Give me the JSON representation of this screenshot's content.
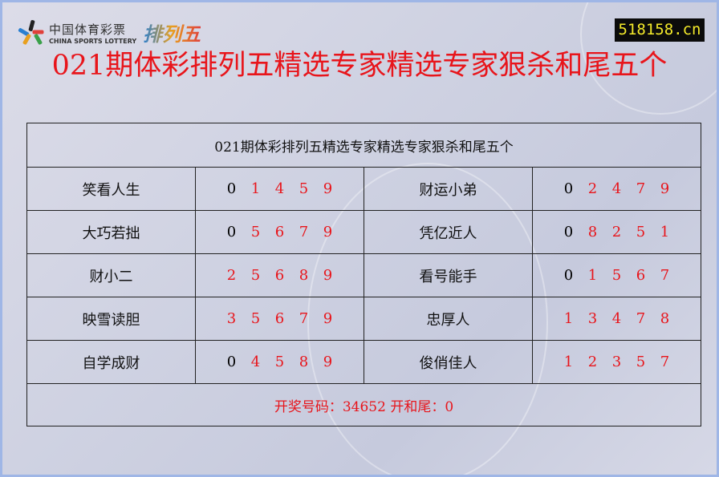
{
  "logo": {
    "cn": "中国体育彩票",
    "en": "CHINA SPORTS LOTTERY",
    "product": "排列五"
  },
  "site": "518158.cn",
  "title": "021期体彩排列五精选专家精选专家狠杀和尾五个",
  "table": {
    "header": "021期体彩排列五精选专家精选专家狠杀和尾五个",
    "rows": [
      {
        "left": {
          "name": "笑看人生",
          "nums": [
            "0",
            "1",
            "4",
            "5",
            "9"
          ]
        },
        "right": {
          "name": "财运小弟",
          "nums": [
            "0",
            "2",
            "4",
            "7",
            "9"
          ]
        }
      },
      {
        "left": {
          "name": "大巧若拙",
          "nums": [
            "0",
            "5",
            "6",
            "7",
            "9"
          ]
        },
        "right": {
          "name": "凭亿近人",
          "nums": [
            "0",
            "8",
            "2",
            "5",
            "1"
          ]
        }
      },
      {
        "left": {
          "name": "财小二",
          "nums": [
            "2",
            "5",
            "6",
            "8",
            "9"
          ]
        },
        "right": {
          "name": "看号能手",
          "nums": [
            "0",
            "1",
            "5",
            "6",
            "7"
          ]
        }
      },
      {
        "left": {
          "name": "映雪读胆",
          "nums": [
            "3",
            "5",
            "6",
            "7",
            "9"
          ]
        },
        "right": {
          "name": "忠厚人",
          "nums": [
            "1",
            "3",
            "4",
            "7",
            "8"
          ]
        }
      },
      {
        "left": {
          "name": "自学成财",
          "nums": [
            "0",
            "4",
            "5",
            "8",
            "9"
          ]
        },
        "right": {
          "name": "俊俏佳人",
          "nums": [
            "1",
            "2",
            "3",
            "5",
            "7"
          ]
        }
      }
    ],
    "footer": "开奖号码：34652 开和尾：0"
  },
  "colors": {
    "highlight": "#e8151b",
    "zero_digit": "#000000",
    "site_text": "#f4ea2a"
  }
}
